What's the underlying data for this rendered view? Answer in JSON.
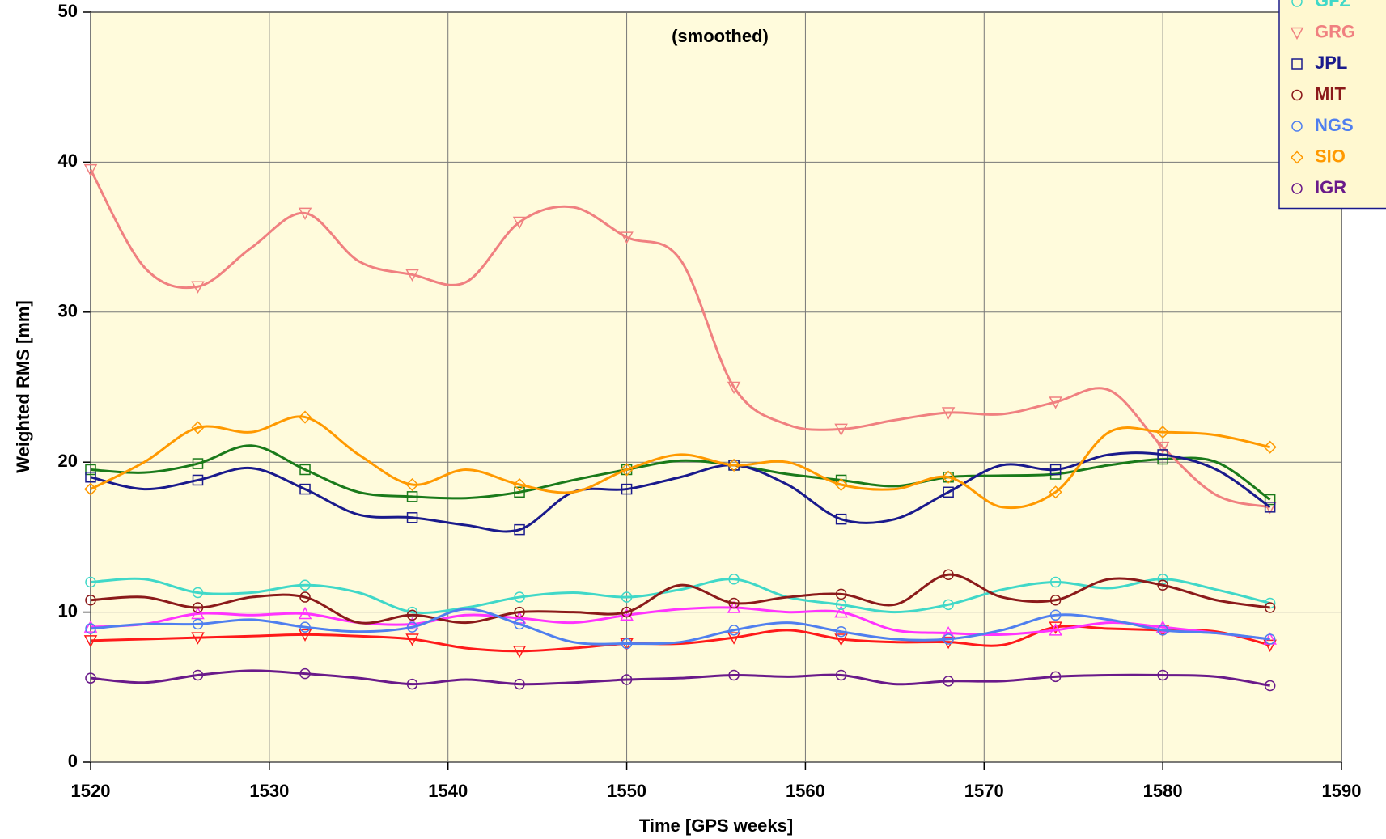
{
  "chart_data": {
    "type": "line",
    "subtitle": "(smoothed)",
    "x_label": "Time [GPS weeks]",
    "y_label": "Weighted RMS [mm]",
    "xlim": [
      1520,
      1590
    ],
    "xticks": [
      1520,
      1530,
      1540,
      1550,
      1560,
      1570,
      1580,
      1590
    ],
    "ylim": [
      0,
      50
    ],
    "yticks": [
      0,
      10,
      20,
      30,
      40,
      50
    ],
    "grid": true,
    "legend": "upper right",
    "background": "#fffbdc",
    "x": [
      1520,
      1523,
      1526,
      1529,
      1532,
      1535,
      1538,
      1541,
      1544,
      1547,
      1550,
      1553,
      1556,
      1559,
      1562,
      1565,
      1568,
      1571,
      1574,
      1577,
      1580,
      1583,
      1586
    ],
    "series": [
      {
        "color": "#1a7a1a",
        "marker": "square",
        "values": [
          19.5,
          19.3,
          19.9,
          21.1,
          19.5,
          18,
          17.7,
          17.6,
          18,
          18.8,
          19.5,
          20.1,
          19.8,
          19.2,
          18.8,
          18.4,
          19,
          19.1,
          19.2,
          19.8,
          20.2,
          20,
          17.5
        ]
      },
      {
        "color": "#ff1a1a",
        "marker": "triangle-down",
        "values": [
          8.1,
          8.2,
          8.3,
          8.4,
          8.5,
          8.4,
          8.2,
          7.6,
          7.4,
          7.6,
          7.9,
          7.9,
          8.3,
          8.8,
          8.2,
          8,
          8,
          7.8,
          9,
          8.9,
          8.8,
          8.7,
          7.8
        ]
      },
      {
        "color": "#ff33ff",
        "marker": "triangle-up",
        "values": [
          9,
          9.2,
          9.9,
          9.8,
          9.9,
          9.3,
          9.2,
          9.8,
          9.6,
          9.3,
          9.8,
          10.2,
          10.3,
          10,
          10,
          8.8,
          8.6,
          8.5,
          8.8,
          9.3,
          9,
          8.6,
          8.2
        ]
      },
      {
        "name": "GFZ",
        "color": "#40d8c8",
        "marker": "circle",
        "values": [
          12,
          12.2,
          11.3,
          11.3,
          11.8,
          11.3,
          10,
          10.3,
          11,
          11.3,
          11,
          11.5,
          12.2,
          11,
          10.5,
          10,
          10.5,
          11.5,
          12,
          11.6,
          12.2,
          11.5,
          10.6
        ]
      },
      {
        "name": "GRG",
        "color": "#f08080",
        "marker": "triangle-down",
        "values": [
          39.5,
          33,
          31.7,
          34.3,
          36.6,
          33.4,
          32.5,
          32,
          36,
          37,
          35,
          33.5,
          25,
          22.5,
          22.2,
          22.8,
          23.3,
          23.2,
          24,
          24.8,
          21,
          17.8,
          17
        ]
      },
      {
        "name": "JPL",
        "color": "#1a1a8c",
        "marker": "square",
        "values": [
          19,
          18.2,
          18.8,
          19.6,
          18.2,
          16.5,
          16.3,
          15.8,
          15.5,
          18,
          18.2,
          19,
          19.8,
          18.5,
          16.2,
          16.2,
          18,
          19.8,
          19.5,
          20.5,
          20.5,
          19.5,
          17
        ]
      },
      {
        "name": "MIT",
        "color": "#8b1a1a",
        "marker": "circle",
        "values": [
          10.8,
          11,
          10.3,
          11,
          11,
          9.3,
          9.8,
          9.3,
          10,
          10,
          10,
          11.8,
          10.6,
          11,
          11.2,
          10.5,
          12.5,
          11,
          10.8,
          12.2,
          11.8,
          10.8,
          10.3
        ]
      },
      {
        "name": "NGS",
        "color": "#4f7fef",
        "marker": "circle",
        "values": [
          8.9,
          9.2,
          9.2,
          9.5,
          9,
          8.7,
          9,
          10.2,
          9.2,
          8,
          7.9,
          8,
          8.8,
          9.3,
          8.7,
          8.2,
          8.2,
          8.8,
          9.8,
          9.5,
          8.8,
          8.6,
          8.2
        ]
      },
      {
        "name": "SIO",
        "color": "#ff9900",
        "marker": "diamond",
        "values": [
          18.2,
          20,
          22.3,
          22,
          23,
          20.5,
          18.5,
          19.5,
          18.5,
          18,
          19.5,
          20.5,
          19.8,
          20,
          18.5,
          18.2,
          19,
          17,
          18,
          22,
          22,
          21.8,
          21
        ]
      },
      {
        "name": "IGR",
        "color": "#6a1a8a",
        "marker": "circle",
        "values": [
          5.6,
          5.3,
          5.8,
          6.1,
          5.9,
          5.6,
          5.2,
          5.5,
          5.2,
          5.3,
          5.5,
          5.6,
          5.8,
          5.7,
          5.8,
          5.2,
          5.4,
          5.4,
          5.7,
          5.8,
          5.8,
          5.7,
          5.1
        ]
      }
    ]
  }
}
